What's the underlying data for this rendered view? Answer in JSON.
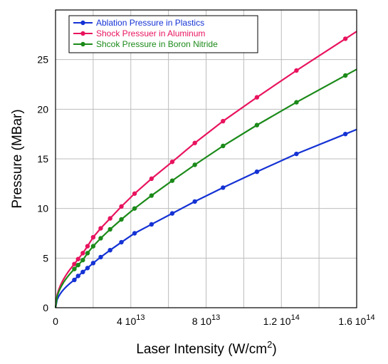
{
  "chart_data": {
    "type": "line",
    "title": "",
    "xlabel": "Laser Intensity (W/cm²)",
    "xlabel_base": "Laser Intensity (W/cm",
    "xlabel_sup": "2",
    "xlabel_end": ")",
    "ylabel": "Pressure (MBar)",
    "xlim": [
      0,
      160000000000000.0
    ],
    "ylim": [
      0,
      30
    ],
    "grid": true,
    "legend_position": "top-left",
    "x_ticks": [
      {
        "value": 0,
        "base": "0",
        "exp": ""
      },
      {
        "value": 40000000000000.0,
        "base": "4 10",
        "exp": "13"
      },
      {
        "value": 80000000000000.0,
        "base": "8 10",
        "exp": "13"
      },
      {
        "value": 120000000000000.0,
        "base": "1.2 10",
        "exp": "14"
      },
      {
        "value": 160000000000000.0,
        "base": "1.6 10",
        "exp": "14"
      }
    ],
    "y_ticks": [
      {
        "value": 0,
        "label": "0"
      },
      {
        "value": 5,
        "label": "5"
      },
      {
        "value": 10,
        "label": "10"
      },
      {
        "value": 15,
        "label": "15"
      },
      {
        "value": 20,
        "label": "20"
      },
      {
        "value": 25,
        "label": "25"
      }
    ],
    "series": [
      {
        "name": "Ablation Pressure in Plastics",
        "color": "#1432d4",
        "points": [
          [
            10000000000000.0,
            2.8
          ],
          [
            12000000000000.0,
            3.2
          ],
          [
            14500000000000.0,
            3.6
          ],
          [
            17000000000000.0,
            4.0
          ],
          [
            20000000000000.0,
            4.5
          ],
          [
            24000000000000.0,
            5.1
          ],
          [
            29000000000000.0,
            5.8
          ],
          [
            35000000000000.0,
            6.6
          ],
          [
            42000000000000.0,
            7.5
          ],
          [
            51000000000000.0,
            8.4
          ],
          [
            62000000000000.0,
            9.5
          ],
          [
            74000000000000.0,
            10.7
          ],
          [
            89000000000000.0,
            12.1
          ],
          [
            107000000000000.0,
            13.7
          ],
          [
            128000000000000.0,
            15.5
          ],
          [
            154000000000000.0,
            17.5
          ]
        ]
      },
      {
        "name": "Shock Pressuer in Aluminum",
        "color": "#e8135e",
        "points": [
          [
            10000000000000.0,
            4.4
          ],
          [
            12000000000000.0,
            4.9
          ],
          [
            14500000000000.0,
            5.5
          ],
          [
            17000000000000.0,
            6.2
          ],
          [
            20000000000000.0,
            7.1
          ],
          [
            24000000000000.0,
            8.0
          ],
          [
            29000000000000.0,
            9.0
          ],
          [
            35000000000000.0,
            10.2
          ],
          [
            42000000000000.0,
            11.5
          ],
          [
            51000000000000.0,
            13.0
          ],
          [
            62000000000000.0,
            14.7
          ],
          [
            74000000000000.0,
            16.6
          ],
          [
            89000000000000.0,
            18.8
          ],
          [
            107000000000000.0,
            21.2
          ],
          [
            128000000000000.0,
            23.9
          ],
          [
            154000000000000.0,
            27.1
          ]
        ]
      },
      {
        "name": "Shcok Pressure in Boron Nitride",
        "color": "#1b8a19",
        "points": [
          [
            10000000000000.0,
            3.9
          ],
          [
            12000000000000.0,
            4.3
          ],
          [
            14500000000000.0,
            4.8
          ],
          [
            17000000000000.0,
            5.5
          ],
          [
            20000000000000.0,
            6.2
          ],
          [
            24000000000000.0,
            7.0
          ],
          [
            29000000000000.0,
            7.9
          ],
          [
            35000000000000.0,
            8.9
          ],
          [
            42000000000000.0,
            10.0
          ],
          [
            51000000000000.0,
            11.3
          ],
          [
            62000000000000.0,
            12.8
          ],
          [
            74000000000000.0,
            14.4
          ],
          [
            89000000000000.0,
            16.3
          ],
          [
            107000000000000.0,
            18.4
          ],
          [
            128000000000000.0,
            20.7
          ],
          [
            154000000000000.0,
            23.4
          ]
        ]
      }
    ]
  }
}
